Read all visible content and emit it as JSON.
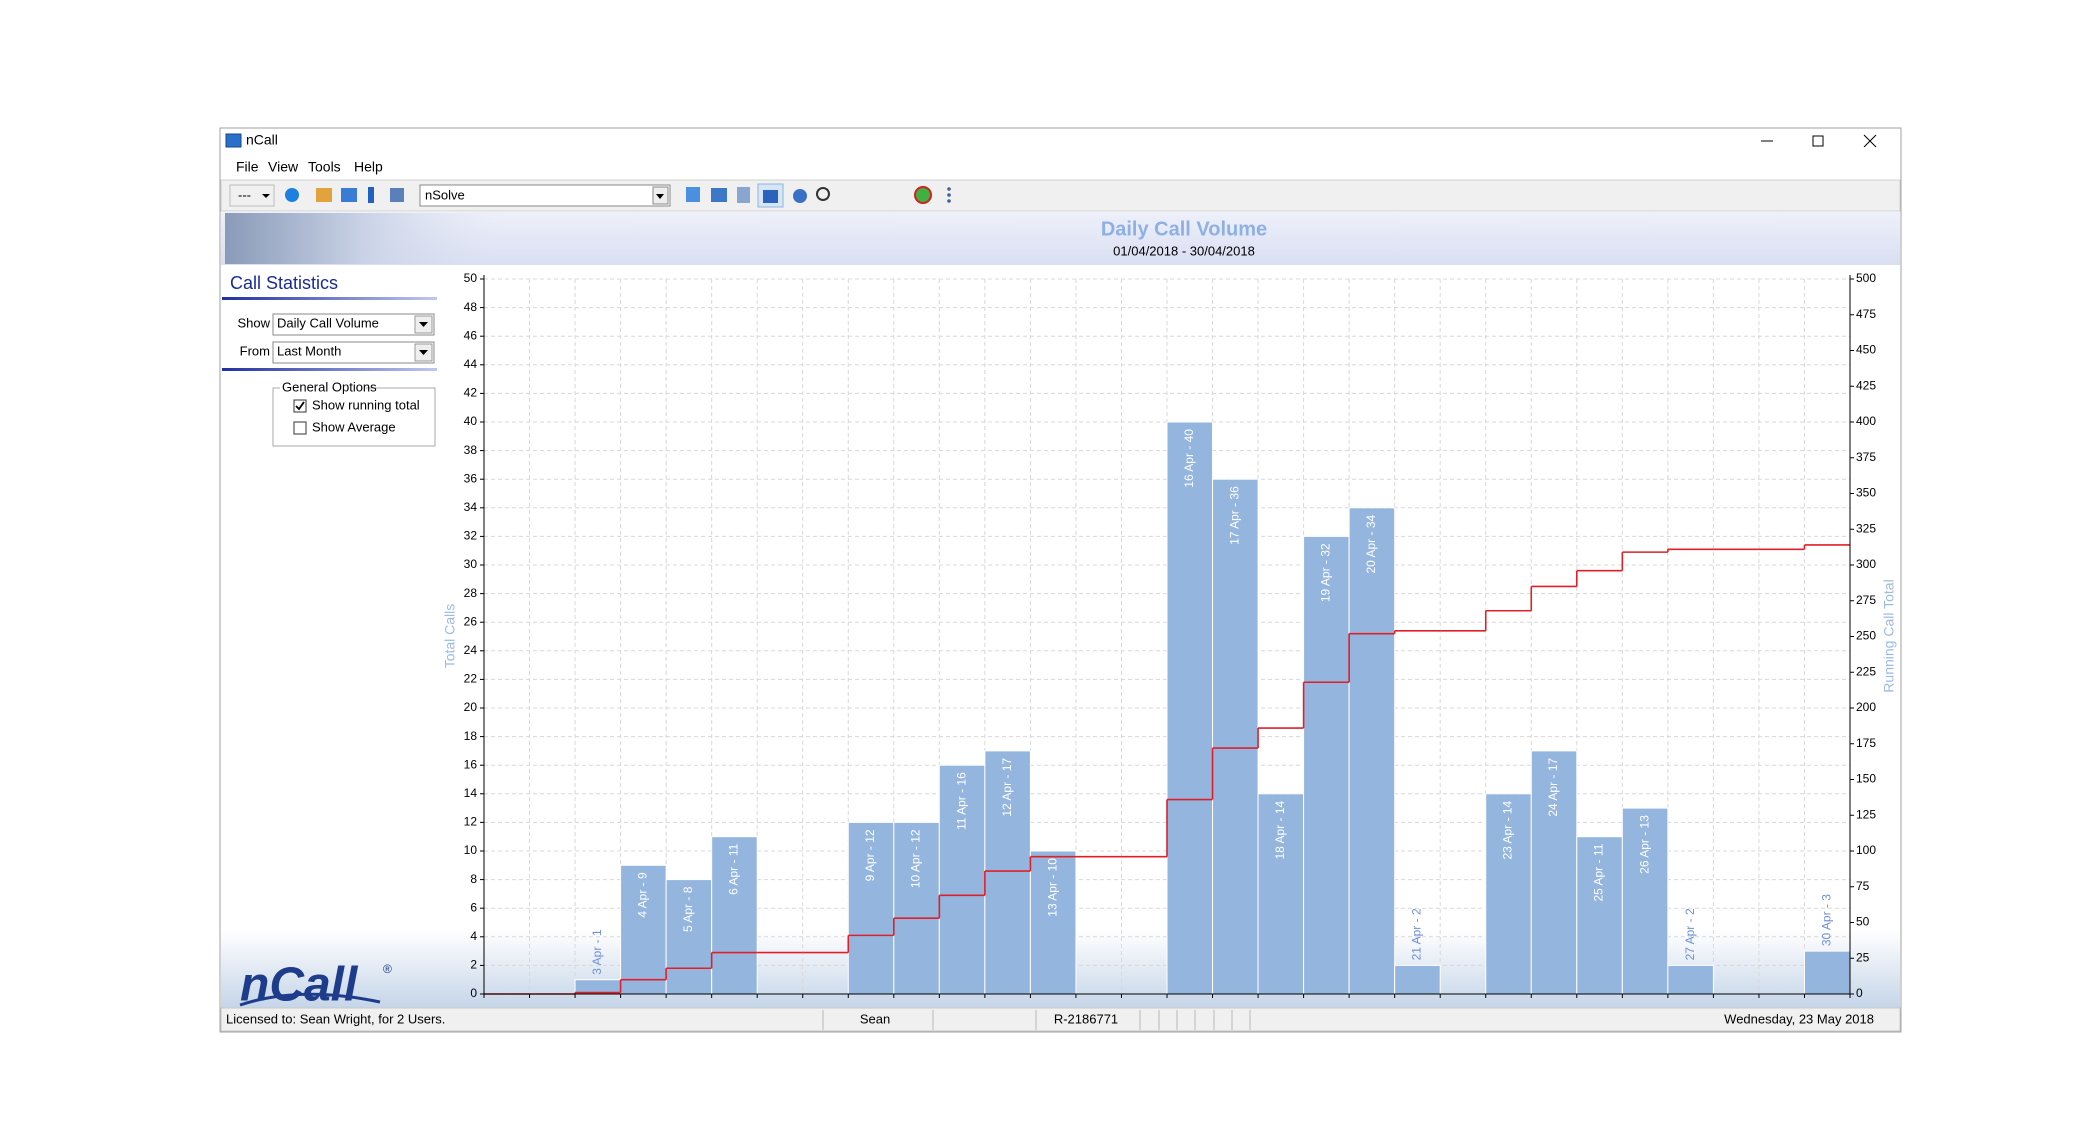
{
  "window": {
    "title": "nCall"
  },
  "menu": [
    "File",
    "View",
    "Tools",
    "Help"
  ],
  "toolbar": {
    "view_select": "---",
    "service_select": "nSolve"
  },
  "panel": {
    "heading": "Call Statistics",
    "show_label": "Show",
    "show_value": "Daily Call Volume",
    "from_label": "From",
    "from_value": "Last Month",
    "options_title": "General Options",
    "options": [
      {
        "label": "Show running total",
        "checked": true
      },
      {
        "label": "Show Average",
        "checked": false
      }
    ]
  },
  "logo": {
    "text": "nCall",
    "mark": "®"
  },
  "status_bar": [
    "Licensed to: Sean Wright, for 2 Users.",
    "Sean",
    "R-2186771",
    "Wednesday, 23 May 2018"
  ],
  "chart_data": {
    "type": "bar",
    "title": "Daily Call Volume",
    "subtitle": "01/04/2018 - 30/04/2018",
    "y_label": "Total Calls",
    "y2_label": "Running Call Total",
    "series": [
      {
        "type": "bar",
        "color": "#94b5de",
        "values": [
          0,
          0,
          1,
          9,
          8,
          11,
          0,
          0,
          12,
          12,
          16,
          17,
          10,
          0,
          0,
          40,
          36,
          14,
          32,
          34,
          2,
          0,
          14,
          17,
          11,
          13,
          2,
          0,
          0,
          3
        ],
        "value_labels": [
          null,
          null,
          "3 Apr - 1",
          "4 Apr - 9",
          "5 Apr - 8",
          "6 Apr - 11",
          null,
          null,
          "9 Apr - 12",
          "10 Apr - 12",
          "11 Apr - 16",
          "12 Apr - 17",
          "13 Apr - 10",
          null,
          null,
          "16 Apr - 40",
          "17 Apr - 36",
          "18 Apr - 14",
          "19 Apr - 32",
          "20 Apr - 34",
          "21 Apr - 2",
          null,
          "23 Apr - 14",
          "24 Apr - 17",
          "25 Apr - 11",
          "26 Apr - 13",
          "27 Apr - 2",
          null,
          null,
          "30 Apr - 3"
        ]
      },
      {
        "type": "step",
        "axis": "y2",
        "color": "#e02028",
        "values": [
          0,
          0,
          1,
          10,
          18,
          29,
          29,
          29,
          41,
          53,
          69,
          86,
          96,
          96,
          96,
          136,
          172,
          186,
          218,
          252,
          254,
          254,
          268,
          285,
          296,
          309,
          311,
          311,
          311,
          314
        ]
      }
    ],
    "ylim": [
      0,
      50
    ],
    "yticks": [
      0,
      2,
      4,
      6,
      8,
      10,
      12,
      14,
      16,
      18,
      20,
      22,
      24,
      26,
      28,
      30,
      32,
      34,
      36,
      38,
      40,
      42,
      44,
      46,
      48,
      50
    ],
    "y2lim": [
      0,
      500
    ],
    "y2ticks": [
      0,
      25,
      50,
      75,
      100,
      125,
      150,
      175,
      200,
      225,
      250,
      275,
      300,
      325,
      350,
      375,
      400,
      425,
      450,
      475,
      500
    ],
    "grid": true
  }
}
